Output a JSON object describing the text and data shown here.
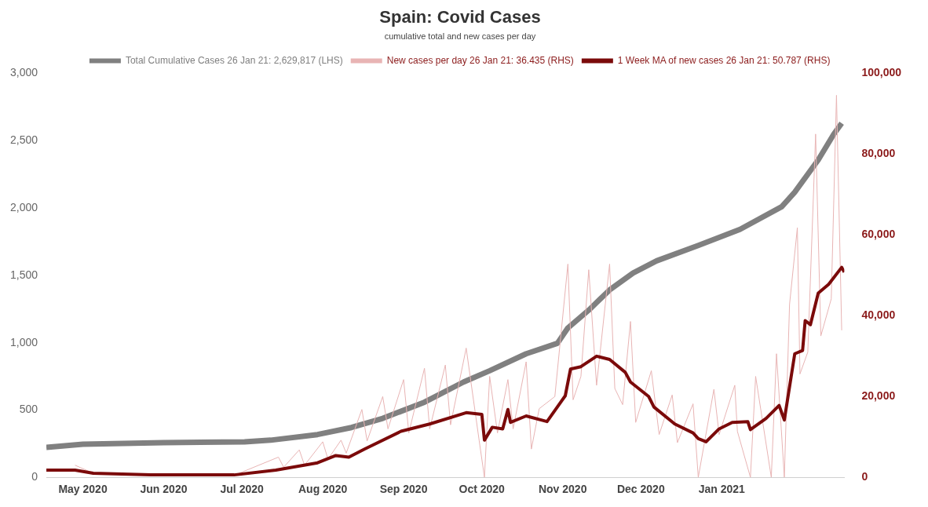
{
  "chart_data": {
    "type": "line",
    "title": "Spain: Covid Cases",
    "subtitle": "cumulative total and new cases per day",
    "xlim": [
      "2020-04-17",
      "2021-02-17"
    ],
    "xticks": [
      {
        "value": "2020-05-01",
        "label": "May 2020"
      },
      {
        "value": "2020-06-01",
        "label": "Jun 2020"
      },
      {
        "value": "2020-07-01",
        "label": "Jul 2020"
      },
      {
        "value": "2020-08-01",
        "label": "Aug 2020"
      },
      {
        "value": "2020-09-01",
        "label": "Sep 2020"
      },
      {
        "value": "2020-10-01",
        "label": "Oct 2020"
      },
      {
        "value": "2020-11-01",
        "label": "Nov 2020"
      },
      {
        "value": "2020-12-01",
        "label": "Dec 2020"
      },
      {
        "value": "2021-01-01",
        "label": "Jan 2021"
      }
    ],
    "ylim": [
      0,
      3000
    ],
    "yticks": [
      0,
      500,
      {
        "value": 1000,
        "label": "1,000"
      },
      {
        "value": 1500,
        "label": "1,500"
      },
      {
        "value": 2000,
        "label": "2,000"
      },
      {
        "value": 2500,
        "label": "2,500"
      },
      {
        "value": 3000,
        "label": "3,000"
      }
    ],
    "y2lim": [
      0,
      100000
    ],
    "y2ticks": [
      0,
      {
        "value": 20000,
        "label": "20,000"
      },
      {
        "value": 40000,
        "label": "40,000"
      },
      {
        "value": 60000,
        "label": "60,000"
      },
      {
        "value": 80000,
        "label": "80,000"
      },
      {
        "value": 100000,
        "label": "100,000"
      }
    ],
    "grid": false,
    "legend": "top",
    "marker": "none",
    "line_style": "solid",
    "series": [
      {
        "name": "Total Cumulative Cases 26 Jan 21: 2,629,817 (LHS)",
        "color": "#808080",
        "x": [
          "2020-04-17",
          "2020-05-01",
          "2020-06-01",
          "2020-07-02",
          "2020-07-12",
          "2020-07-30",
          "2020-08-12",
          "2020-08-24",
          "2020-09-09",
          "2020-09-24",
          "2020-10-04",
          "2020-10-18",
          "2020-10-30",
          "2020-11-03",
          "2020-11-11",
          "2020-11-19",
          "2020-11-28",
          "2020-12-07",
          "2020-12-23",
          "2021-01-08",
          "2021-01-24",
          "2021-01-29",
          "2021-02-07",
          "2021-02-13",
          "2021-02-16"
        ],
        "values": [
          222,
          246,
          258,
          264,
          276,
          318,
          370,
          438,
          558,
          708,
          792,
          918,
          996,
          1110,
          1242,
          1392,
          1518,
          1608,
          1722,
          1842,
          2010,
          2118,
          2358,
          2550,
          2630
        ]
      },
      {
        "name": "New cases per day 26 Jan 21: 36.435 (RHS)",
        "color": "#e8b4b4",
        "axis": "y2",
        "x": [
          "2020-04-28",
          "2020-05-05",
          "2020-06-28",
          "2020-07-15",
          "2020-07-17",
          "2020-07-23",
          "2020-07-25",
          "2020-08-01",
          "2020-08-03",
          "2020-08-08",
          "2020-08-10",
          "2020-08-16",
          "2020-08-18",
          "2020-08-24",
          "2020-08-26",
          "2020-09-01",
          "2020-09-03",
          "2020-09-09",
          "2020-09-11",
          "2020-09-17",
          "2020-09-19",
          "2020-09-25",
          "2020-09-30",
          "2020-10-02",
          "2020-10-04",
          "2020-10-07",
          "2020-10-11",
          "2020-10-13",
          "2020-10-18",
          "2020-10-20",
          "2020-10-23",
          "2020-10-29",
          "2020-11-03",
          "2020-11-05",
          "2020-11-08",
          "2020-11-11",
          "2020-11-14",
          "2020-11-19",
          "2020-11-21",
          "2020-11-24",
          "2020-11-27",
          "2020-11-29",
          "2020-12-05",
          "2020-12-08",
          "2020-12-13",
          "2020-12-15",
          "2020-12-21",
          "2020-12-23",
          "2020-12-29",
          "2020-12-31",
          "2021-01-06",
          "2021-01-07",
          "2021-01-12",
          "2021-01-14",
          "2021-01-20",
          "2021-01-22",
          "2021-01-25",
          "2021-01-27",
          "2021-01-30",
          "2021-01-31",
          "2021-02-03",
          "2021-02-06",
          "2021-02-08",
          "2021-02-12",
          "2021-02-14",
          "2021-02-16"
        ],
        "values": [
          3000,
          1000,
          500,
          5000,
          2500,
          6800,
          3000,
          8800,
          4500,
          9200,
          6000,
          16800,
          9000,
          20000,
          12000,
          24200,
          11000,
          27000,
          12000,
          27800,
          13000,
          32000,
          9000,
          0,
          25000,
          11000,
          24200,
          12000,
          28600,
          7000,
          17000,
          20000,
          52800,
          19200,
          25000,
          51400,
          22800,
          52800,
          22000,
          18000,
          38600,
          13600,
          26400,
          10600,
          20400,
          8600,
          18200,
          0,
          21800,
          10600,
          22800,
          11400,
          0,
          25000,
          0,
          30600,
          0,
          42800,
          61800,
          25600,
          31000,
          85000,
          35000,
          44200,
          94600,
          36400
        ]
      },
      {
        "name": "1 Week MA of new cases 26 Jan 21: 50.787 (RHS)",
        "color": "#7b0a0a",
        "axis": "y2",
        "x": [
          "2020-04-17",
          "2020-04-28",
          "2020-05-05",
          "2020-05-27",
          "2020-06-28",
          "2020-07-14",
          "2020-07-30",
          "2020-08-06",
          "2020-08-11",
          "2020-08-17",
          "2020-08-31",
          "2020-09-11",
          "2020-09-25",
          "2020-10-01",
          "2020-10-02",
          "2020-10-05",
          "2020-10-09",
          "2020-10-11",
          "2020-10-12",
          "2020-10-18",
          "2020-10-26",
          "2020-11-02",
          "2020-11-04",
          "2020-11-08",
          "2020-11-14",
          "2020-11-19",
          "2020-11-25",
          "2020-11-27",
          "2020-12-04",
          "2020-12-06",
          "2020-12-14",
          "2020-12-21",
          "2020-12-23",
          "2020-12-26",
          "2020-12-31",
          "2021-01-05",
          "2021-01-11",
          "2021-01-12",
          "2021-01-18",
          "2021-01-23",
          "2021-01-25",
          "2021-01-29",
          "2021-02-01",
          "2021-02-02",
          "2021-02-04",
          "2021-02-07",
          "2021-02-11",
          "2021-02-16",
          "2021-02-17"
        ],
        "values": [
          1800,
          1800,
          1000,
          600,
          600,
          1800,
          3600,
          5400,
          5000,
          7000,
          11400,
          13200,
          16000,
          15600,
          9200,
          12400,
          12000,
          16800,
          13600,
          15200,
          13800,
          20200,
          26800,
          27400,
          30000,
          29200,
          26000,
          23600,
          20000,
          17400,
          13200,
          11000,
          9600,
          8800,
          12000,
          13600,
          13800,
          11800,
          14600,
          17800,
          14200,
          30600,
          31400,
          38800,
          37800,
          45600,
          47800,
          52000,
          50800
        ]
      }
    ]
  }
}
